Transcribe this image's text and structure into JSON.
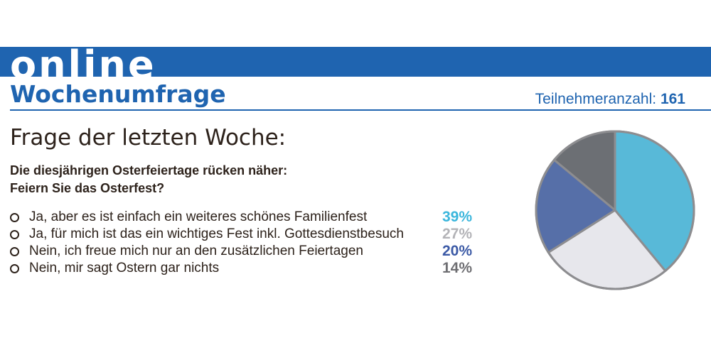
{
  "header": {
    "banner": "online",
    "subtitle": "Wochenumfrage",
    "participants_label": "Teilnehmeranzahl:",
    "participants_count": "161",
    "brand_color": "#1f64b0"
  },
  "question": {
    "heading": "Frage der letzten Woche:",
    "line1": "Die diesjährigen Osterfeiertage rücken näher:",
    "line2": "Feiern Sie das Osterfest?"
  },
  "options": [
    {
      "label": "Ja, aber es ist einfach ein weiteres schönes Familienfest",
      "percent": "39%",
      "color": "#3bb6dc"
    },
    {
      "label": "Ja, für mich ist das ein wichtiges Fest inkl. Gottesdienstbesuch",
      "percent": "27%",
      "color": "#b3b3b7"
    },
    {
      "label": "Nein, ich freue mich nur an den zusätzlichen Feiertagen",
      "percent": "20%",
      "color": "#3c5aa6"
    },
    {
      "label": "Nein, mir sagt Ostern gar nichts",
      "percent": "14%",
      "color": "#6e6e72"
    }
  ],
  "chart_data": {
    "type": "pie",
    "categories": [
      "Ja, aber es ist einfach ein weiteres schönes Familienfest",
      "Ja, für mich ist das ein wichtiges Fest inkl. Gottesdienstbesuch",
      "Nein, ich freue mich nur an den zusätzlichen Feiertagen",
      "Nein, mir sagt Ostern gar nichts"
    ],
    "values": [
      39,
      27,
      20,
      14
    ],
    "colors": [
      "#58b9d8",
      "#e7e7ec",
      "#566fa8",
      "#6c6f74"
    ],
    "outline_color": "#8d8d90",
    "start": "top",
    "direction": "clockwise"
  }
}
